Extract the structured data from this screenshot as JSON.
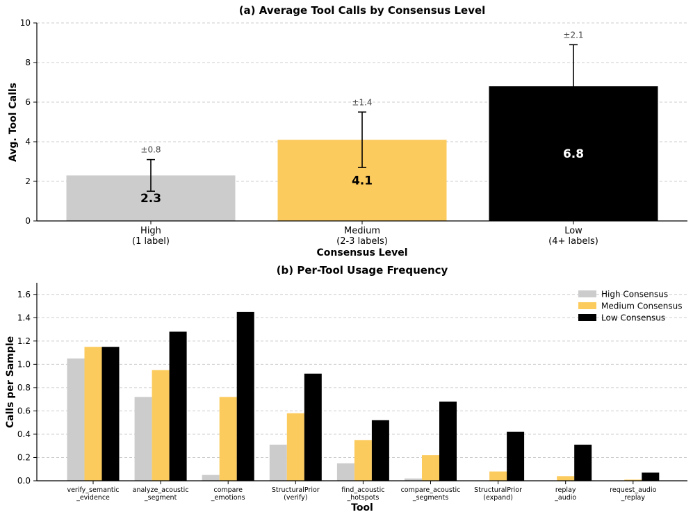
{
  "chart_data": [
    {
      "type": "bar",
      "title": "(a) Average Tool Calls by Consensus Level",
      "xlabel": "Consensus Level",
      "ylabel": "Avg. Tool Calls",
      "ylim": [
        0,
        10
      ],
      "yticks": [
        "0",
        "2",
        "4",
        "6",
        "8",
        "10"
      ],
      "grid": true,
      "categories": [
        {
          "line1": "High",
          "line2": "(1 label)"
        },
        {
          "line1": "Medium",
          "line2": "(2-3 labels)"
        },
        {
          "line1": "Low",
          "line2": "(4+ labels)"
        }
      ],
      "values": [
        2.3,
        4.1,
        6.8
      ],
      "value_labels": [
        "2.3",
        "4.1",
        "6.8"
      ],
      "errors": [
        0.8,
        1.4,
        2.1
      ],
      "error_labels": [
        "±0.8",
        "±1.4",
        "±2.1"
      ],
      "colors": [
        "#cccccc",
        "#fccb5e",
        "#000000"
      ],
      "value_label_colors": [
        "#000000",
        "#000000",
        "#ffffff"
      ]
    },
    {
      "type": "bar",
      "title": "(b) Per-Tool Usage Frequency",
      "xlabel": "Tool",
      "ylabel": "Calls per Sample",
      "ylim": [
        0,
        1.7
      ],
      "yticks": [
        "0.0",
        "0.2",
        "0.4",
        "0.6",
        "0.8",
        "1.0",
        "1.2",
        "1.4",
        "1.6"
      ],
      "grid": true,
      "legend_position": "top-right",
      "categories": [
        {
          "line1": "verify_semantic",
          "line2": "_evidence"
        },
        {
          "line1": "analyze_acoustic",
          "line2": "_segment"
        },
        {
          "line1": "compare",
          "line2": "_emotions"
        },
        {
          "line1": "StructuralPrior",
          "line2": "(verify)"
        },
        {
          "line1": "find_acoustic",
          "line2": "_hotspots"
        },
        {
          "line1": "compare_acoustic",
          "line2": "_segments"
        },
        {
          "line1": "StructuralPrior",
          "line2": "(expand)"
        },
        {
          "line1": "replay",
          "line2": "_audio"
        },
        {
          "line1": "request_audio",
          "line2": "_replay"
        }
      ],
      "series": [
        {
          "name": "High Consensus",
          "color": "#cccccc",
          "values": [
            1.05,
            0.72,
            0.05,
            0.31,
            0.15,
            0.02,
            0.0,
            0.0,
            0.0
          ]
        },
        {
          "name": "Medium Consensus",
          "color": "#fccb5e",
          "values": [
            1.15,
            0.95,
            0.72,
            0.58,
            0.35,
            0.22,
            0.08,
            0.04,
            0.01
          ]
        },
        {
          "name": "Low Consensus",
          "color": "#000000",
          "values": [
            1.15,
            1.28,
            1.45,
            0.92,
            0.52,
            0.68,
            0.42,
            0.31,
            0.07
          ]
        }
      ]
    }
  ]
}
